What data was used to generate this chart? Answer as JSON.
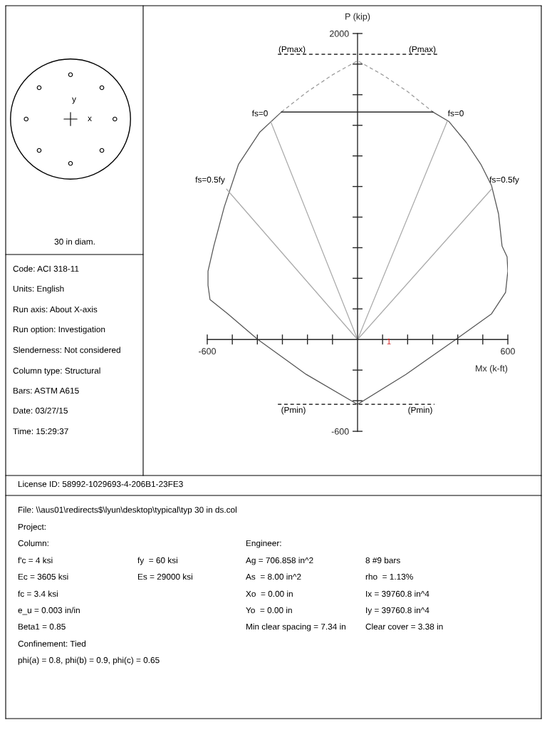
{
  "chart_data": {
    "type": "line",
    "xlabel": "Mx (k-ft)",
    "ylabel": "P (kip)",
    "xlim": [
      -600,
      600
    ],
    "ylim": [
      -600,
      2000
    ],
    "xticks": [
      -600,
      {
        "value": -500,
        "label": null
      },
      {
        "value": -400,
        "label": null
      },
      {
        "value": -300,
        "label": null
      },
      {
        "value": -200,
        "label": null
      },
      {
        "value": -100,
        "label": null
      },
      {
        "value": 100,
        "label": null
      },
      {
        "value": 200,
        "label": null
      },
      {
        "value": 300,
        "label": null
      },
      {
        "value": 400,
        "label": null
      },
      {
        "value": 500,
        "label": null
      },
      600
    ],
    "yticks": [
      -600,
      {
        "value": -400,
        "label": null
      },
      {
        "value": -200,
        "label": null
      },
      {
        "value": 200,
        "label": null
      },
      {
        "value": 400,
        "label": null
      },
      {
        "value": 600,
        "label": null
      },
      {
        "value": 800,
        "label": null
      },
      {
        "value": 1000,
        "label": null
      },
      {
        "value": 1200,
        "label": null
      },
      {
        "value": 1400,
        "label": null
      },
      {
        "value": 1600,
        "label": null
      },
      {
        "value": 1800,
        "label": null
      },
      2000
    ],
    "grid": false,
    "series": [
      {
        "color": "#555555",
        "line_style": "solid",
        "x": [
          -304,
          -390,
          -475,
          -532,
          -574,
          -597,
          -597,
          -589,
          -518,
          -398,
          -205,
          0,
          193,
          392,
          535,
          591,
          600,
          597,
          577,
          563,
          535,
          492,
          435,
          364,
          301
        ],
        "values": [
          1487,
          1356,
          1146,
          867,
          610,
          447,
          354,
          261,
          168,
          0,
          -228,
          -424,
          -228,
          0,
          168,
          308,
          447,
          540,
          610,
          820,
          1006,
          1146,
          1286,
          1426,
          1487
        ]
      },
      {
        "color": "#999999",
        "line_style": "dashed",
        "x": [
          -304,
          -200,
          -100,
          0,
          100,
          200,
          301
        ],
        "values": [
          1487,
          1620,
          1730,
          1822,
          1730,
          1620,
          1487
        ]
      },
      {
        "color": "#000000",
        "line_style": "solid",
        "x": [
          -304,
          301
        ],
        "values": [
          1487,
          1487
        ]
      },
      {
        "color": "#000000",
        "line_style": "dashed",
        "x": [
          -318,
          318
        ],
        "values": [
          1864,
          1864
        ]
      },
      {
        "color": "#000000",
        "line_style": "dashed",
        "x": [
          -318,
          307
        ],
        "values": [
          -424,
          -424
        ]
      },
      {
        "color": "#aaaaaa",
        "line_style": "solid",
        "x": [
          0,
          -347
        ],
        "values": [
          0,
          1426
        ]
      },
      {
        "color": "#aaaaaa",
        "line_style": "solid",
        "x": [
          0,
          358
        ],
        "values": [
          0,
          1426
        ]
      },
      {
        "color": "#aaaaaa",
        "line_style": "solid",
        "x": [
          0,
          -523
        ],
        "values": [
          0,
          983
        ]
      },
      {
        "color": "#aaaaaa",
        "line_style": "solid",
        "x": [
          0,
          535
        ],
        "values": [
          0,
          983
        ]
      }
    ],
    "annotations": [
      "(Pmax)",
      "(Pmax)",
      "fs=0",
      "fs=0",
      "fs=0.5fy",
      "fs=0.5fy",
      "(Pmin)",
      "(Pmin)",
      "1",
      "y",
      "x",
      "30 in diam.",
      "Code: ACI 318-11",
      "Units: English",
      "Run axis: About X-axis",
      "Run option: Investigation",
      "Slenderness: Not considered",
      "Column type: Structural",
      "Bars: ASTM A615",
      "Date: 03/27/15",
      "Time: 15:29:37",
      "License ID: 58992-1029693-4-206B1-23FE3",
      "File: \\\\aus01\\redirects$\\lyun\\desktop\\typical\\typ 30 in ds.col",
      "Project:",
      "Column:",
      "Engineer:",
      "f'c = 4 ksi",
      "fy  = 60 ksi",
      "Ag = 706.858 in^2",
      "8 #9 bars",
      "Ec = 3605 ksi",
      "Es = 29000 ksi",
      "As  = 8.00 in^2",
      "rho  = 1.13%",
      "fc = 3.4 ksi",
      "Xo  = 0.00 in",
      "Ix = 39760.8 in^4",
      "e_u = 0.003 in/in",
      "Yo  = 0.00 in",
      "Iy = 39760.8 in^4",
      "Beta1 = 0.85",
      "Min clear spacing = 7.34 in",
      "Clear cover = 3.38 in",
      "Confinement: Tied",
      "phi(a) = 0.8, phi(b) = 0.9, phi(c) = 0.65"
    ]
  }
}
